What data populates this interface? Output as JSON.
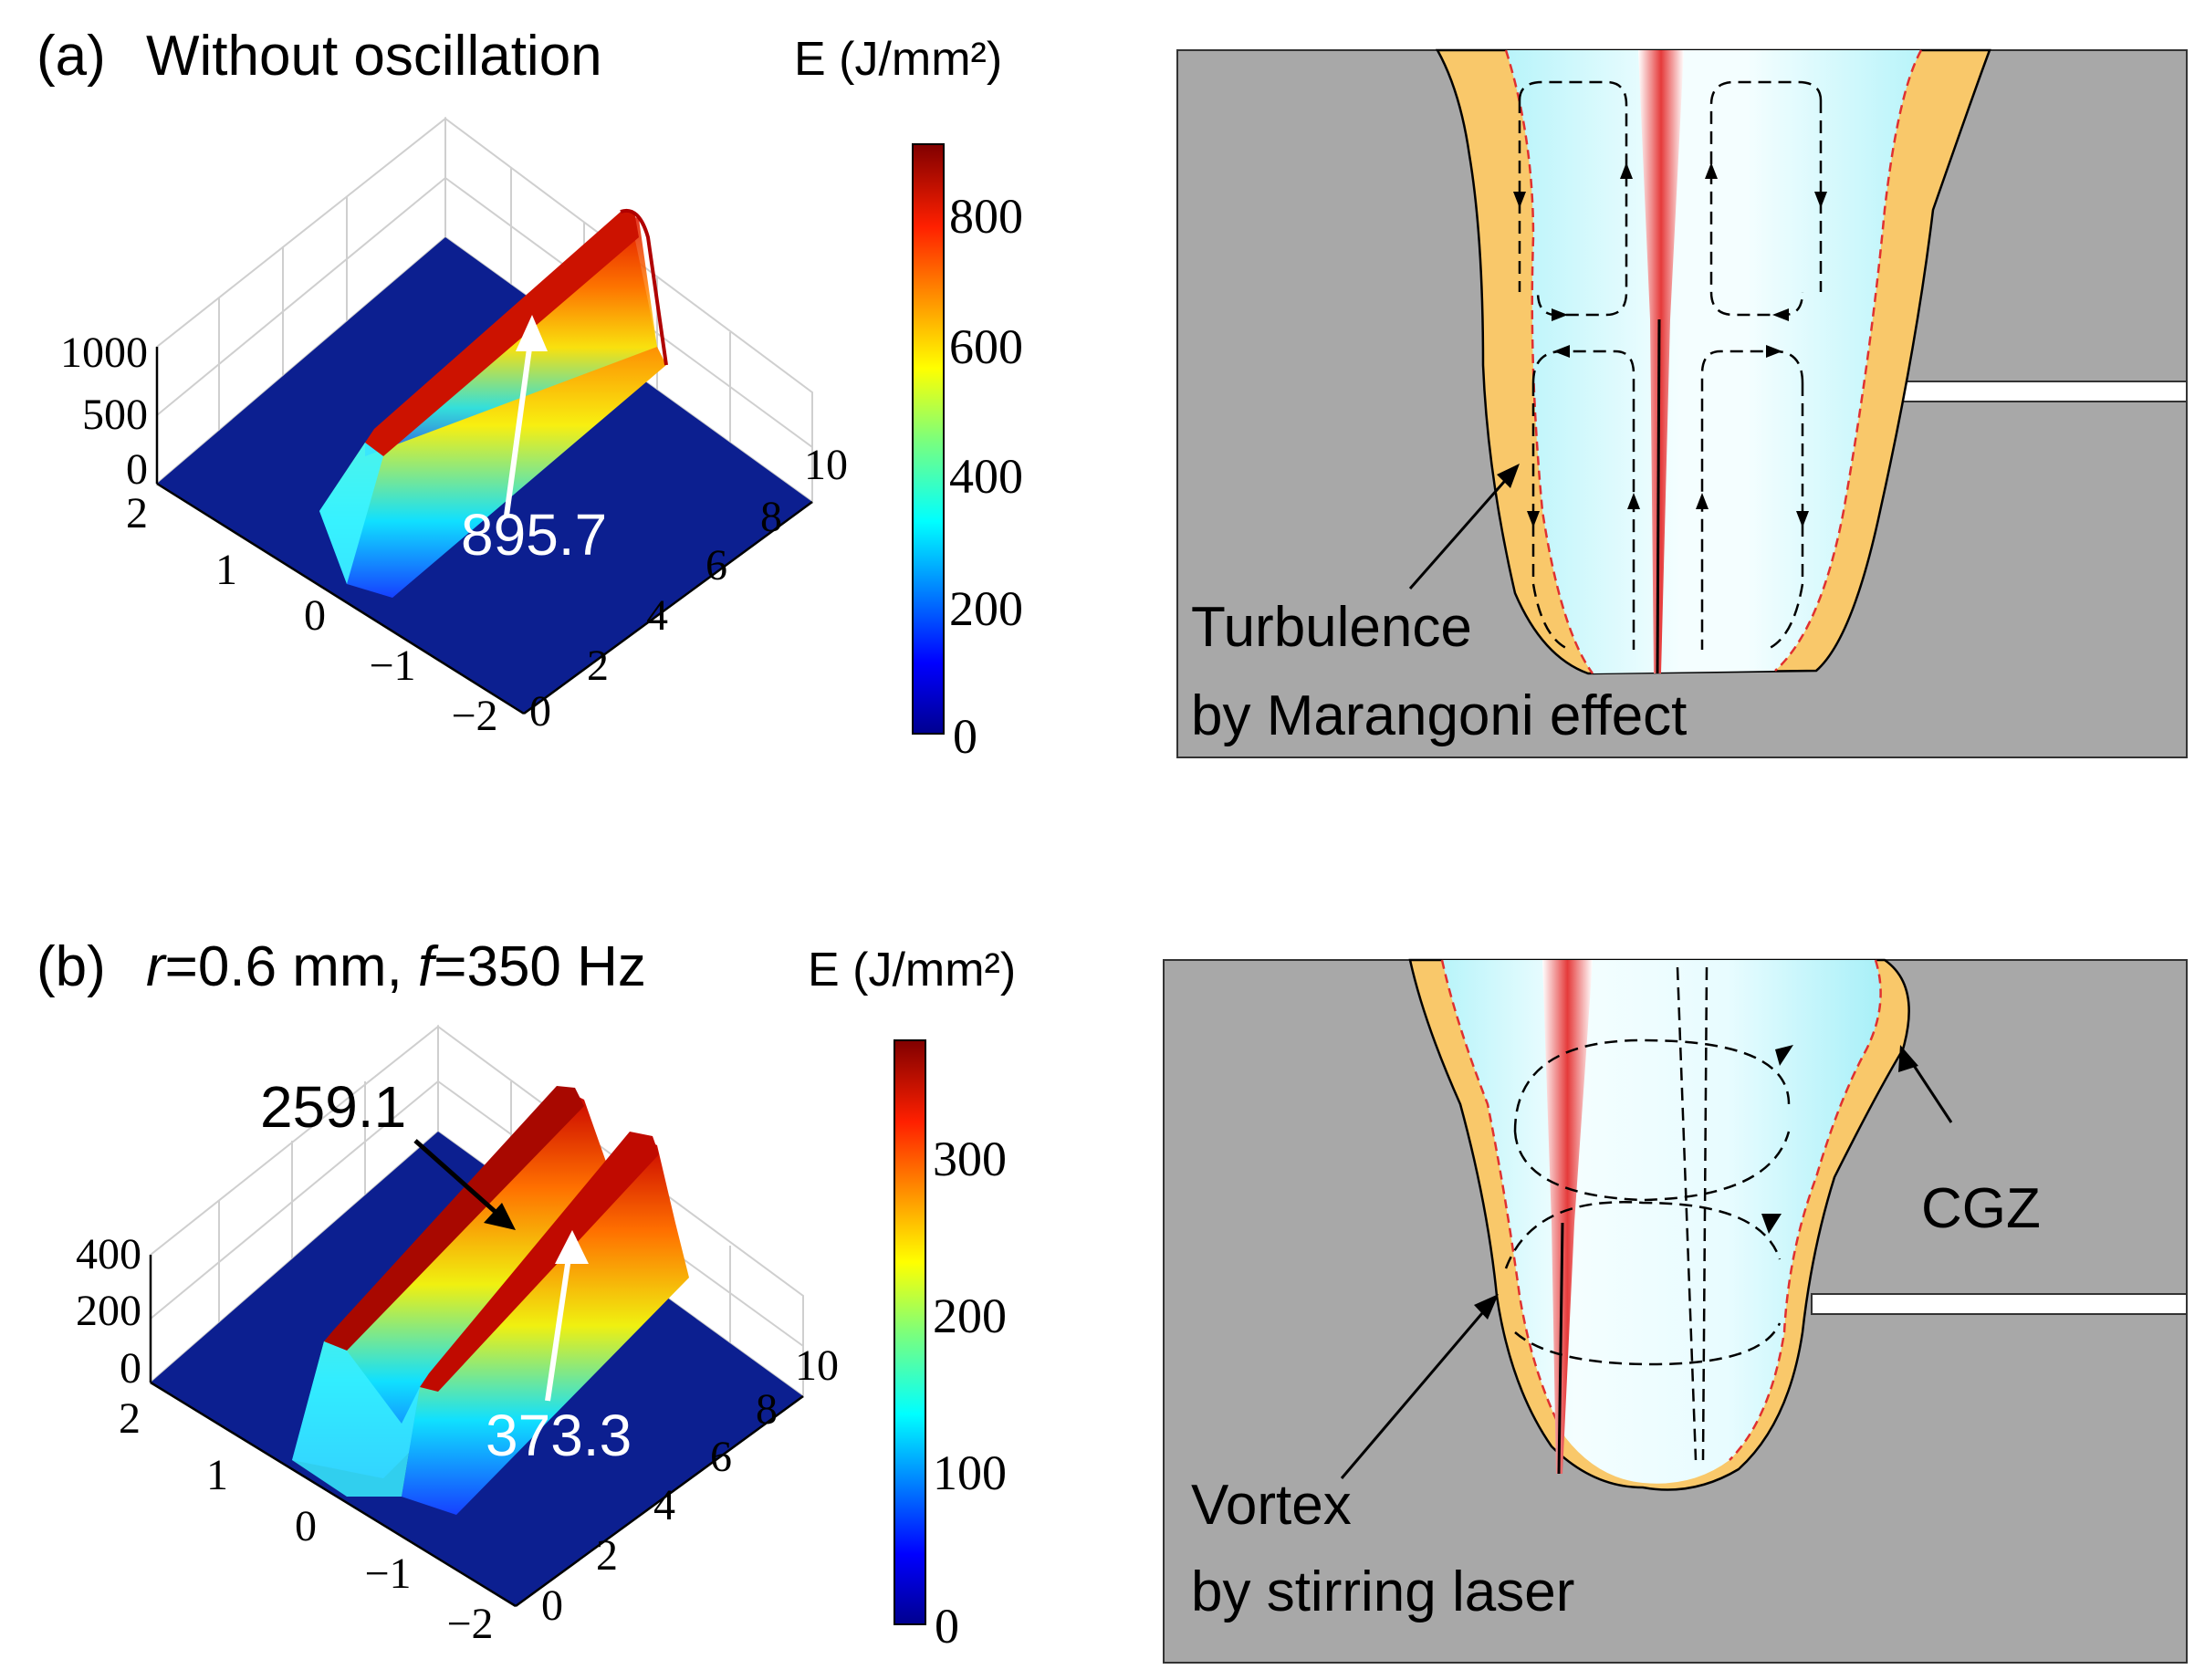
{
  "panel_a": {
    "title_label": "(a)",
    "title_text": "Without oscillation",
    "colorbar_unit": "E (J/mm²)",
    "colorbar_ticks": [
      "0",
      "200",
      "400",
      "600",
      "800"
    ],
    "z_ticks": [
      "0",
      "500",
      "1000"
    ],
    "x_ticks": [
      "2",
      "1",
      "0",
      "−1",
      "−2"
    ],
    "y_ticks": [
      "0",
      "2",
      "4",
      "6",
      "8",
      "10"
    ],
    "peak_value": "895.7",
    "annotation": [
      "Turbulence",
      "by Marangoni effect"
    ]
  },
  "panel_b": {
    "title_label": "(b)",
    "title_r": "r",
    "title_r_value": "=0.6 mm, ",
    "title_f": "f",
    "title_f_value": "=350 Hz",
    "colorbar_unit": "E (J/mm²)",
    "colorbar_ticks": [
      "0",
      "100",
      "200",
      "300"
    ],
    "z_ticks": [
      "0",
      "200",
      "400"
    ],
    "x_ticks": [
      "2",
      "1",
      "0",
      "−1",
      "−2"
    ],
    "y_ticks": [
      "0",
      "2",
      "4",
      "6",
      "8",
      "10"
    ],
    "peak_left": "259.1",
    "peak_right": "373.3",
    "annotation_vortex": [
      "Vortex",
      "by stirring laser"
    ],
    "annotation_cgz": "CGZ"
  },
  "colors": {
    "base_metal": "#a8a8a8",
    "melt_pool": "#bdf4f8",
    "mushy_zone": "#f9c86a",
    "keyhole": "#e03a3a",
    "surface_floor": "#0a1f8f"
  }
}
